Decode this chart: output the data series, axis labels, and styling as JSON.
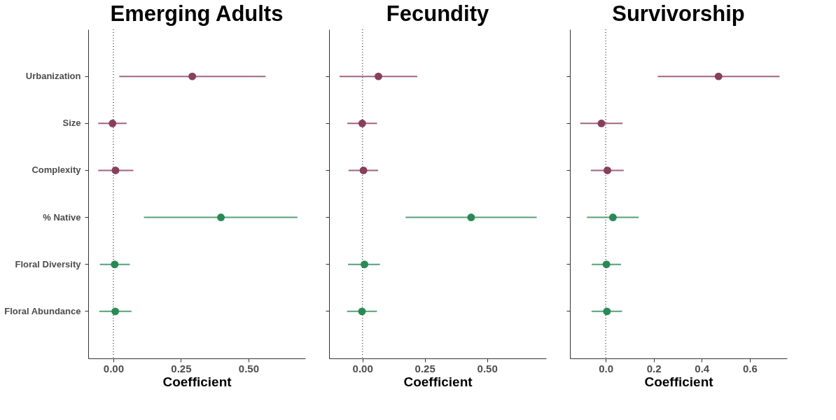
{
  "chart_data": [
    {
      "type": "scatter",
      "title": "Emerging Adults",
      "xlabel": "Coefficient",
      "orientation": "horizontal",
      "marker": "circle",
      "grid": false,
      "categories": [
        "Urbanization",
        "Size",
        "Complexity",
        "% Native",
        "Floral Diversity",
        "Floral Abundance"
      ],
      "values": [
        0.292,
        -0.003,
        0.008,
        0.398,
        0.005,
        0.007
      ],
      "errors": [
        [
          0.022,
          0.563
        ],
        [
          -0.056,
          0.049
        ],
        [
          -0.056,
          0.074
        ],
        [
          0.113,
          0.681
        ],
        [
          -0.05,
          0.061
        ],
        [
          -0.052,
          0.067
        ]
      ],
      "colors": [
        "#883f5c",
        "#883f5c",
        "#883f5c",
        "#2a8a56",
        "#2a8a56",
        "#2a8a56"
      ],
      "xlim": [
        -0.093,
        0.71
      ],
      "xticks": [
        {
          "value": 0,
          "label": "0.00"
        },
        {
          "value": 0.25,
          "label": "0.25"
        },
        {
          "value": 0.5,
          "label": "0.50"
        }
      ],
      "ref_lines": [
        {
          "axis": "x",
          "value": 0,
          "line_style": "dotted",
          "color": "#555555"
        }
      ]
    },
    {
      "type": "scatter",
      "title": "Fecundity",
      "xlabel": "Coefficient",
      "orientation": "horizontal",
      "marker": "circle",
      "grid": false,
      "tick_labels": "x",
      "values": [
        0.064,
        -0.001,
        0.004,
        0.436,
        0.008,
        -0.002
      ],
      "categories": [
        null,
        null,
        null,
        null,
        null,
        null
      ],
      "errors": [
        [
          -0.092,
          0.22
        ],
        [
          -0.061,
          0.058
        ],
        [
          -0.056,
          0.063
        ],
        [
          0.173,
          0.699
        ],
        [
          -0.058,
          0.07
        ],
        [
          -0.062,
          0.058
        ]
      ],
      "colors": [
        "#883f5c",
        "#883f5c",
        "#883f5c",
        "#2a8a56",
        "#2a8a56",
        "#2a8a56"
      ],
      "xlim": [
        -0.134,
        0.737
      ],
      "xticks": [
        {
          "value": 0,
          "label": "0.00"
        },
        {
          "value": 0.25,
          "label": "0.25"
        },
        {
          "value": 0.5,
          "label": "0.50"
        }
      ],
      "ref_lines": [
        {
          "axis": "x",
          "value": 0,
          "line_style": "dotted",
          "color": "#555555"
        }
      ]
    },
    {
      "type": "scatter",
      "title": "Survivorship",
      "xlabel": "Coefficient",
      "orientation": "horizontal",
      "marker": "circle",
      "grid": false,
      "tick_labels": "x",
      "values": [
        0.47,
        -0.018,
        0.007,
        0.03,
        0.003,
        0.005
      ],
      "categories": [
        null,
        null,
        null,
        null,
        null,
        null
      ],
      "errors": [
        [
          0.217,
          0.724
        ],
        [
          -0.106,
          0.07
        ],
        [
          -0.062,
          0.075
        ],
        [
          -0.078,
          0.137
        ],
        [
          -0.058,
          0.064
        ],
        [
          -0.059,
          0.068
        ]
      ],
      "colors": [
        "#883f5c",
        "#883f5c",
        "#883f5c",
        "#2a8a56",
        "#2a8a56",
        "#2a8a56"
      ],
      "xlim": [
        -0.149,
        0.755
      ],
      "xticks": [
        {
          "value": 0,
          "label": "0.0"
        },
        {
          "value": 0.2,
          "label": "0.2"
        },
        {
          "value": 0.4,
          "label": "0.4"
        },
        {
          "value": 0.6,
          "label": "0.6"
        }
      ],
      "ref_lines": [
        {
          "axis": "x",
          "value": 0,
          "line_style": "dotted",
          "color": "#555555"
        }
      ]
    }
  ]
}
